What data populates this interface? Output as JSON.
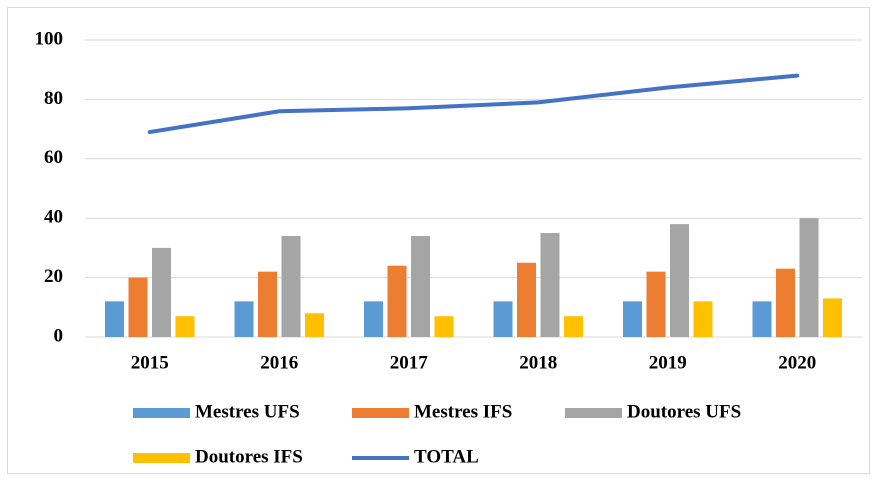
{
  "chart_data": {
    "type": "bar",
    "categories": [
      "2015",
      "2016",
      "2017",
      "2018",
      "2019",
      "2020"
    ],
    "series": [
      {
        "name": "Mestres UFS",
        "color": "#5b9bd5",
        "values": [
          12,
          12,
          12,
          12,
          12,
          12
        ]
      },
      {
        "name": "Mestres IFS",
        "color": "#ed7d31",
        "values": [
          20,
          22,
          24,
          25,
          22,
          23
        ]
      },
      {
        "name": "Doutores UFS",
        "color": "#a5a5a5",
        "values": [
          30,
          34,
          34,
          35,
          38,
          40
        ]
      },
      {
        "name": "Doutores IFS",
        "color": "#ffc000",
        "values": [
          7,
          8,
          7,
          7,
          12,
          13
        ]
      },
      {
        "name": "TOTAL",
        "type": "line",
        "color": "#4472c4",
        "values": [
          69,
          76,
          77,
          79,
          84,
          88
        ]
      }
    ],
    "ylim": [
      0,
      100
    ],
    "yticks": [
      0,
      20,
      40,
      60,
      80,
      100
    ],
    "grid": true,
    "legend": "bottom"
  }
}
